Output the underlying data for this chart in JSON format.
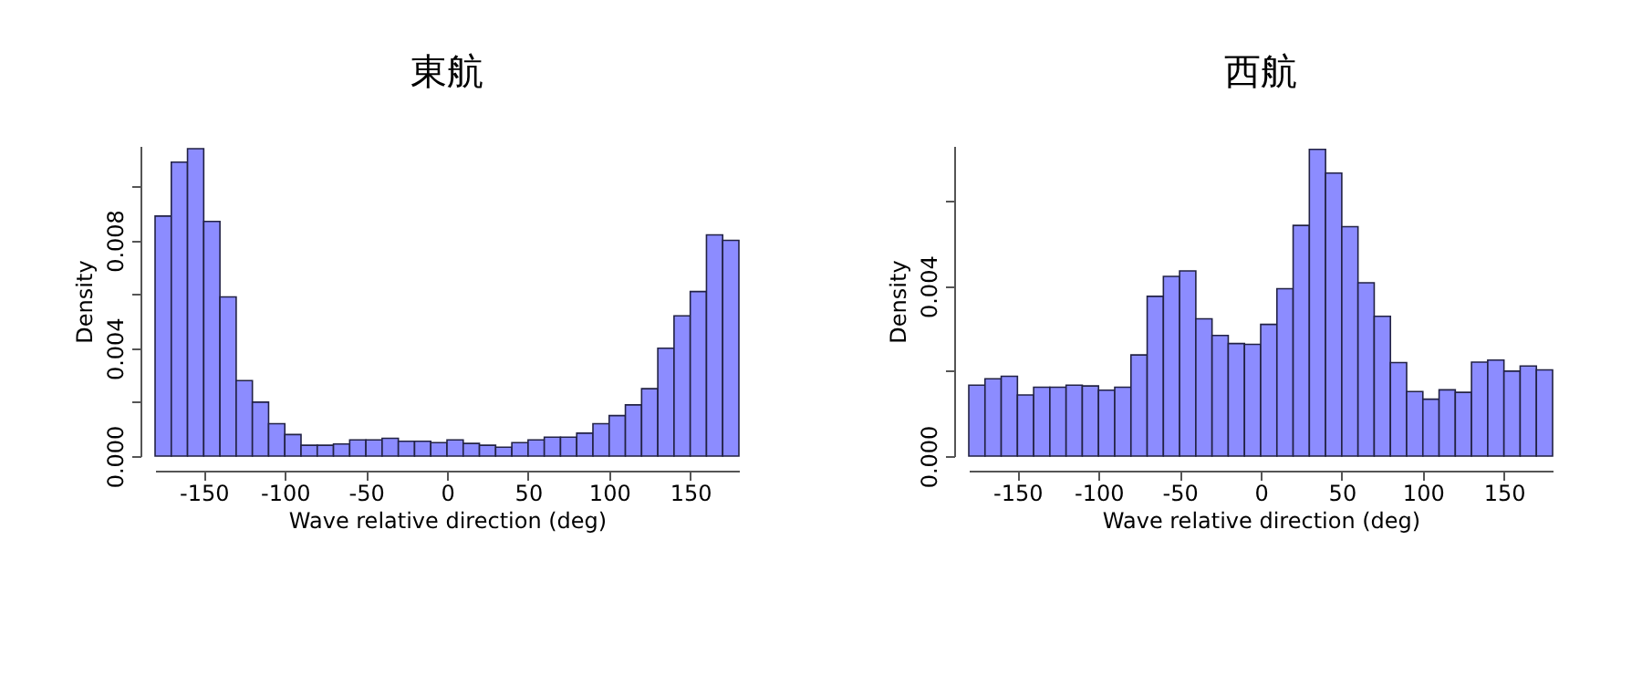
{
  "chart_data": [
    {
      "type": "histogram",
      "title": "東航",
      "xlabel": "Wave relative direction (deg)",
      "ylabel": "Density",
      "color": "#8c8cff",
      "bins": [
        -180,
        -170,
        -160,
        -150,
        -140,
        -130,
        -120,
        -110,
        -100,
        -90,
        -80,
        -70,
        -60,
        -50,
        -40,
        -30,
        -20,
        -10,
        0,
        10,
        20,
        30,
        40,
        50,
        60,
        70,
        80,
        90,
        100,
        110,
        120,
        130,
        140,
        150,
        160,
        170,
        180
      ],
      "values": [
        0.0089,
        0.0109,
        0.0114,
        0.0087,
        0.0059,
        0.0028,
        0.002,
        0.0012,
        0.0008,
        0.0004,
        0.0004,
        0.00045,
        0.0006,
        0.0006,
        0.00066,
        0.00055,
        0.00055,
        0.0005,
        0.0006,
        0.00047,
        0.0004,
        0.00033,
        0.0005,
        0.0006,
        0.0007,
        0.0007,
        0.00085,
        0.0012,
        0.0015,
        0.0019,
        0.0025,
        0.004,
        0.0052,
        0.0061,
        0.0082,
        0.008
      ],
      "xlim": [
        -180,
        180
      ],
      "xticks": [
        -150,
        -100,
        -50,
        0,
        50,
        100,
        150
      ],
      "ylim": [
        0,
        0.0115
      ],
      "yticks": [
        {
          "value": 0,
          "label": "0.000"
        },
        {
          "value": 0.002,
          "label": null
        },
        {
          "value": 0.004,
          "label": "0.004"
        },
        {
          "value": 0.006,
          "label": null
        },
        {
          "value": 0.008,
          "label": "0.008"
        },
        {
          "value": 0.01,
          "label": null
        }
      ],
      "grid": false
    },
    {
      "type": "histogram",
      "title": "西航",
      "xlabel": "Wave relative direction (deg)",
      "ylabel": "Density",
      "color": "#8c8cff",
      "bins": [
        -180,
        -170,
        -160,
        -150,
        -140,
        -130,
        -120,
        -110,
        -100,
        -90,
        -80,
        -70,
        -60,
        -50,
        -40,
        -30,
        -20,
        -10,
        0,
        10,
        20,
        30,
        40,
        50,
        60,
        70,
        80,
        90,
        100,
        110,
        120,
        130,
        140,
        150,
        160,
        170,
        180
      ],
      "values": [
        0.00167,
        0.00182,
        0.00188,
        0.00144,
        0.00162,
        0.00162,
        0.00167,
        0.00165,
        0.00155,
        0.00162,
        0.00238,
        0.00376,
        0.00423,
        0.00436,
        0.00323,
        0.00284,
        0.00265,
        0.00263,
        0.0031,
        0.00394,
        0.00543,
        0.00722,
        0.00666,
        0.0054,
        0.00408,
        0.00329,
        0.0022,
        0.00152,
        0.00134,
        0.00156,
        0.0015,
        0.00221,
        0.00226,
        0.002,
        0.00212,
        0.00203
      ],
      "xlim": [
        -180,
        180
      ],
      "xticks": [
        -150,
        -100,
        -50,
        0,
        50,
        100,
        150
      ],
      "ylim": [
        0,
        0.0073
      ],
      "yticks": [
        {
          "value": 0,
          "label": "0.000"
        },
        {
          "value": 0.002,
          "label": null
        },
        {
          "value": 0.004,
          "label": "0.004"
        },
        {
          "value": 0.006,
          "label": null
        }
      ],
      "grid": false
    }
  ]
}
